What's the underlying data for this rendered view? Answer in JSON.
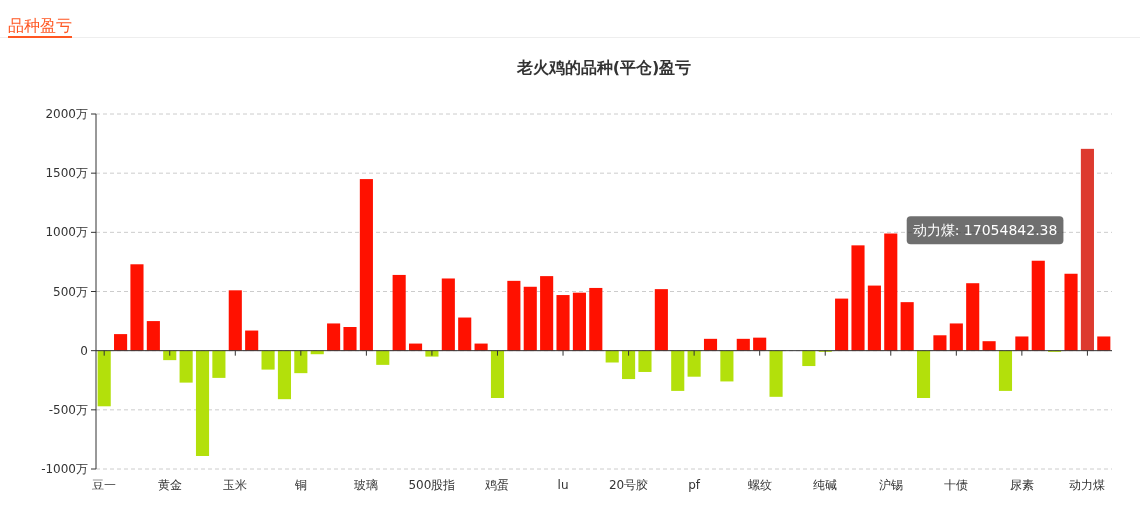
{
  "chart_data": {
    "type": "bar",
    "title": "老火鸡的品种(平仓)盈亏",
    "subtitle": "品种盈亏",
    "categories": [
      "豆一",
      null,
      null,
      null,
      "黄金",
      null,
      null,
      null,
      "玉米",
      null,
      null,
      null,
      "铜",
      null,
      null,
      null,
      "玻璃",
      null,
      null,
      null,
      "500股指",
      null,
      null,
      null,
      "鸡蛋",
      null,
      null,
      null,
      "lu",
      null,
      null,
      null,
      "20号胶",
      null,
      null,
      null,
      "pf",
      null,
      null,
      null,
      "螺纹",
      null,
      null,
      null,
      "纯碱",
      null,
      null,
      null,
      "沪锡",
      null,
      null,
      null,
      "十债",
      null,
      null,
      null,
      "尿素",
      null,
      null,
      null,
      "动力煤",
      null
    ],
    "values": [
      -470,
      140,
      730,
      250,
      -80,
      -270,
      -890,
      -230,
      510,
      170,
      -160,
      -410,
      -190,
      -30,
      230,
      200,
      1450,
      -120,
      640,
      60,
      -50,
      610,
      280,
      60,
      -400,
      590,
      540,
      630,
      470,
      490,
      530,
      -100,
      -240,
      -180,
      520,
      -340,
      -220,
      100,
      -260,
      100,
      110,
      -390,
      0,
      -130,
      -10,
      440,
      890,
      550,
      990,
      410,
      -400,
      130,
      230,
      570,
      80,
      -340,
      120,
      760,
      -10,
      650,
      1705.48,
      120
    ],
    "colors": [
      "#b3e00b",
      "#ff1100",
      "#ff1100",
      "#ff1100",
      "#b3e00b",
      "#b3e00b",
      "#b3e00b",
      "#b3e00b",
      "#ff1100",
      "#ff1100",
      "#b3e00b",
      "#b3e00b",
      "#b3e00b",
      "#b3e00b",
      "#ff1100",
      "#ff1100",
      "#ff1100",
      "#b3e00b",
      "#ff1100",
      "#ff1100",
      "#b3e00b",
      "#ff1100",
      "#ff1100",
      "#ff1100",
      "#b3e00b",
      "#ff1100",
      "#ff1100",
      "#ff1100",
      "#ff1100",
      "#ff1100",
      "#ff1100",
      "#b3e00b",
      "#b3e00b",
      "#b3e00b",
      "#ff1100",
      "#b3e00b",
      "#b3e00b",
      "#ff1100",
      "#b3e00b",
      "#ff1100",
      "#ff1100",
      "#b3e00b",
      "#ff1100",
      "#b3e00b",
      "#b3e00b",
      "#ff1100",
      "#ff1100",
      "#ff1100",
      "#ff1100",
      "#ff1100",
      "#b3e00b",
      "#ff1100",
      "#ff1100",
      "#ff1100",
      "#ff1100",
      "#b3e00b",
      "#ff1100",
      "#ff1100",
      "#b3e00b",
      "#ff1100",
      "#dd3a2f",
      "#ff1100"
    ],
    "ylim": [
      -1000,
      2000
    ],
    "yticks": [
      {
        "value": -1000,
        "label": "-1000万"
      },
      {
        "value": -500,
        "label": "-500万"
      },
      0,
      {
        "value": 500,
        "label": "500万"
      },
      {
        "value": 1000,
        "label": "1000万"
      },
      {
        "value": 1500,
        "label": "1500万"
      },
      {
        "value": 2000,
        "label": "2000万"
      }
    ],
    "grid": "y",
    "annotations": [
      "动力煤: 17054842.38"
    ]
  }
}
